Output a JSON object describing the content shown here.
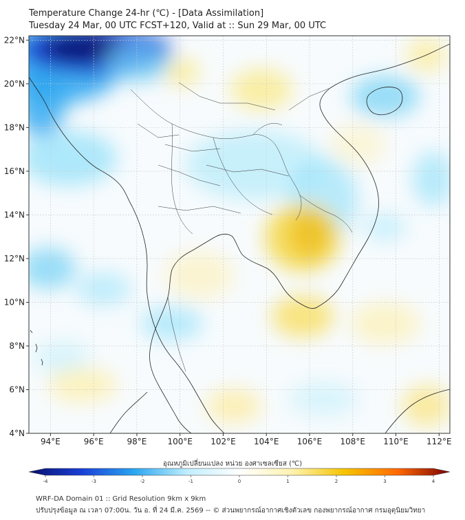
{
  "header": {
    "title_line1": "Temperature Change 24-hr (℃) - [Data Assimilation]",
    "title_line2": "Tuesday 24 Mar, 00 UTC FCST+120, Valid at :: Sun 29 Mar, 00 UTC"
  },
  "map": {
    "lat_labels": [
      "22°N",
      "20°N",
      "18°N",
      "16°N",
      "14°N",
      "12°N",
      "10°N",
      "8°N",
      "6°N",
      "4°N"
    ],
    "lon_labels": [
      "94°E",
      "96°E",
      "98°E",
      "100°E",
      "102°E",
      "104°E",
      "106°E",
      "108°E",
      "110°E",
      "112°E"
    ],
    "extent": {
      "lon": [
        93,
        112.5
      ],
      "lat": [
        4,
        22.2
      ]
    }
  },
  "colorbar": {
    "title": "อุณหภูมิเปลี่ยนแปลง หน่วย องศาเซลเซียส (℃)",
    "min": -4,
    "max": 4,
    "ticks": [
      "-4",
      "-3",
      "-2",
      "-1",
      "0",
      "1",
      "2",
      "3",
      "4"
    ],
    "colors": [
      "#08106e",
      "#1a3fd6",
      "#2aa6f0",
      "#bfeeff",
      "#ffffff",
      "#fff3b0",
      "#f5c400",
      "#ff6a00",
      "#7a0000"
    ]
  },
  "footer": {
    "line1": "WRF-DA Domain 01 :: Grid Resolution 9km x 9km",
    "line2": "ปรับปรุงข้อมูล ณ เวลา 07:00น. วัน อ. ที่ 24 มี.ค. 2569 -- © ส่วนพยากรณ์อากาศเชิงตัวเลข กองพยากรณ์อากาศ กรมอุตุนิยมวิทยา"
  }
}
